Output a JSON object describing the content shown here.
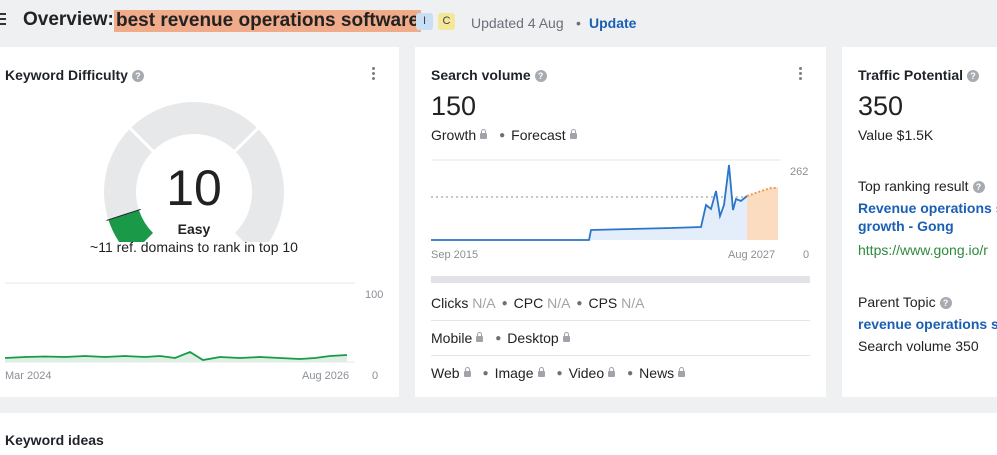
{
  "header": {
    "title_prefix": "Overview:",
    "keyword": "best revenue operations software",
    "badges": [
      "I",
      "C"
    ],
    "updated": "Updated 4 Aug",
    "separator": "•",
    "update_link": "Update"
  },
  "keyword_difficulty": {
    "title": "Keyword Difficulty",
    "value": "10",
    "level": "Easy",
    "subtitle": "~11 ref. domains to rank in top 10",
    "gauge_fraction": 0.1,
    "chart": {
      "ymax_label": "100",
      "ymin_label": "0",
      "x_start": "Mar 2024",
      "x_end": "Aug 2026"
    },
    "colors": {
      "accent": "#1a9a48",
      "gauge_bg": "#e7e8ea"
    }
  },
  "search_volume": {
    "title": "Search volume",
    "value": "150",
    "growth_label": "Growth",
    "forecast_label": "Forecast",
    "chart": {
      "ymax_label": "262",
      "ymin_label": "0",
      "x_start": "Sep 2015",
      "x_end": "Aug 2027"
    },
    "metrics": [
      {
        "label": "Clicks",
        "value": "N/A"
      },
      {
        "label": "CPC",
        "value": "N/A"
      },
      {
        "label": "CPS",
        "value": "N/A"
      }
    ],
    "devices": [
      "Mobile",
      "Desktop"
    ],
    "sources": [
      "Web",
      "Image",
      "Video",
      "News"
    ],
    "colors": {
      "line": "#2b76c9",
      "forecast": "#f09a4c"
    }
  },
  "traffic_potential": {
    "title": "Traffic Potential",
    "value": "350",
    "value_text": "Value $1.5K",
    "top_ranking_label": "Top ranking result",
    "top_ranking_title_line1": "Revenue operations s",
    "top_ranking_title_line2": "growth - Gong",
    "top_ranking_url": "https://www.gong.io/r",
    "parent_topic_label": "Parent Topic",
    "parent_topic_link": "revenue operations s",
    "parent_topic_volume": "Search volume 350"
  },
  "keyword_ideas": {
    "title": "Keyword ideas"
  }
}
